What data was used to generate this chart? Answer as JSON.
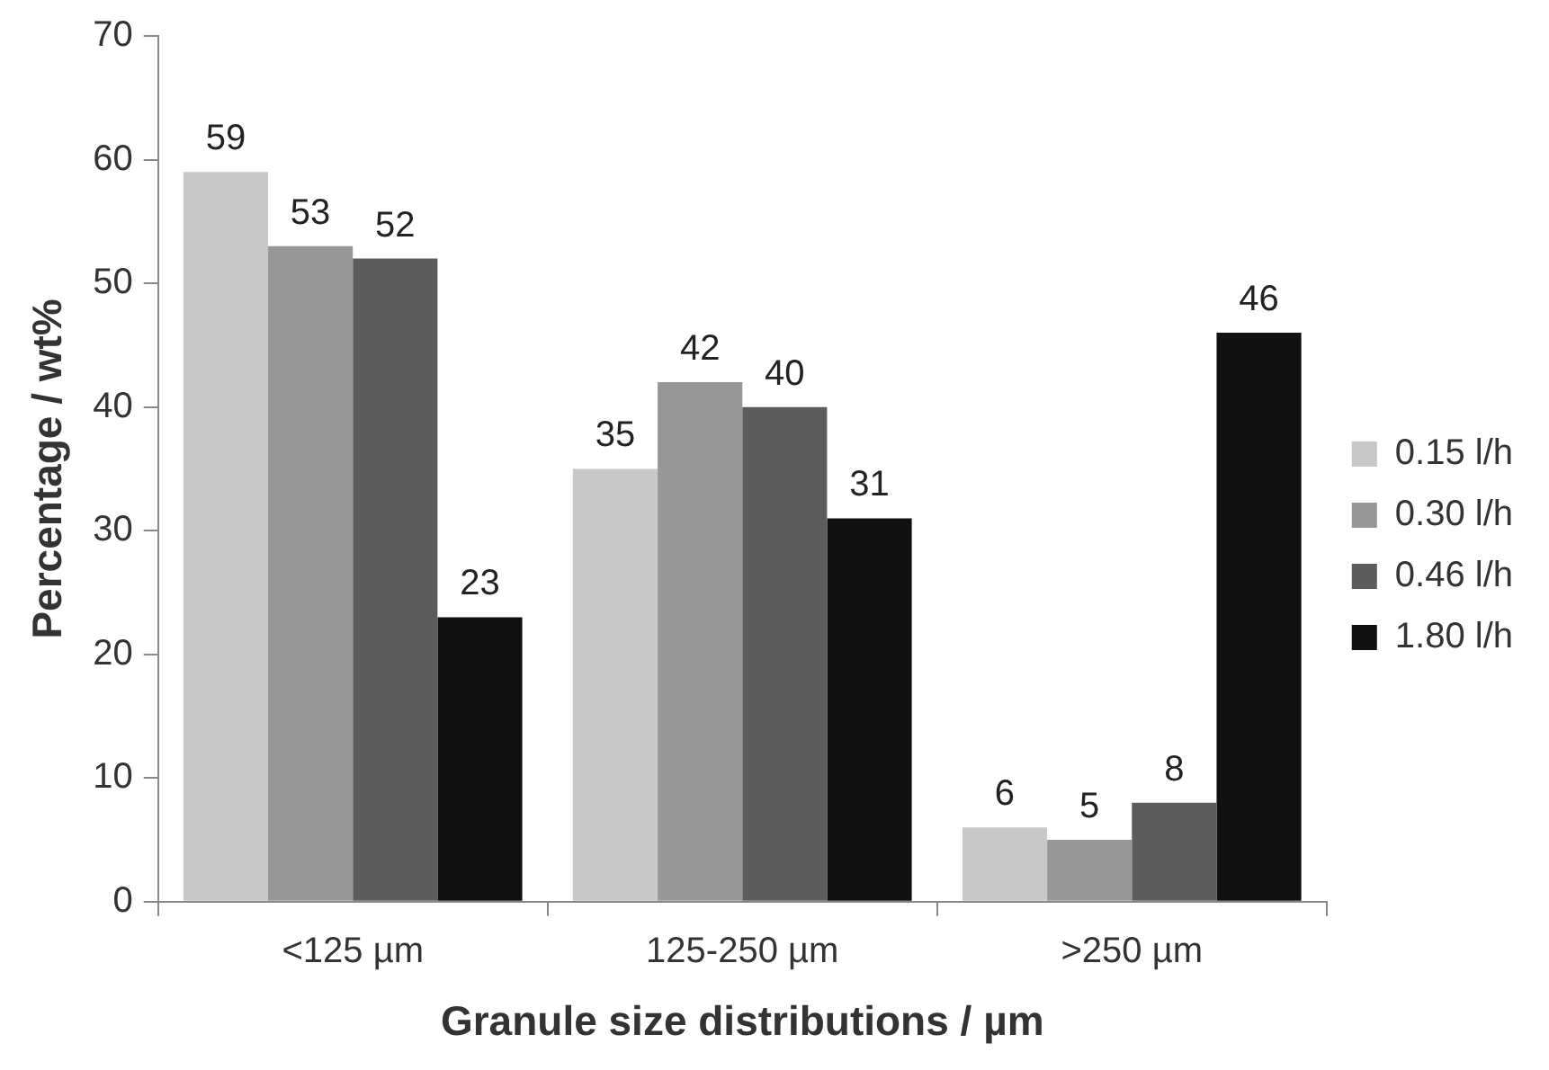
{
  "chart_data": {
    "type": "bar",
    "xlabel": "Granule size distributions / µm",
    "ylabel": "Percentage / wt%",
    "categories": [
      "<125 µm",
      "125-250 µm",
      ">250 µm"
    ],
    "series": [
      {
        "name": "0.15 l/h",
        "color": "#c8c8c8",
        "values": [
          59,
          35,
          6
        ]
      },
      {
        "name": "0.30 l/h",
        "color": "#979797",
        "values": [
          53,
          42,
          5
        ]
      },
      {
        "name": "0.46 l/h",
        "color": "#5c5c5c",
        "values": [
          52,
          40,
          8
        ]
      },
      {
        "name": "1.80 l/h",
        "color": "#111111",
        "values": [
          23,
          31,
          46
        ]
      }
    ],
    "ylim": [
      0,
      70
    ],
    "yticks": [
      0,
      10,
      20,
      30,
      40,
      50,
      60,
      70
    ],
    "grid": false,
    "legend": "right",
    "data_labels": true
  }
}
